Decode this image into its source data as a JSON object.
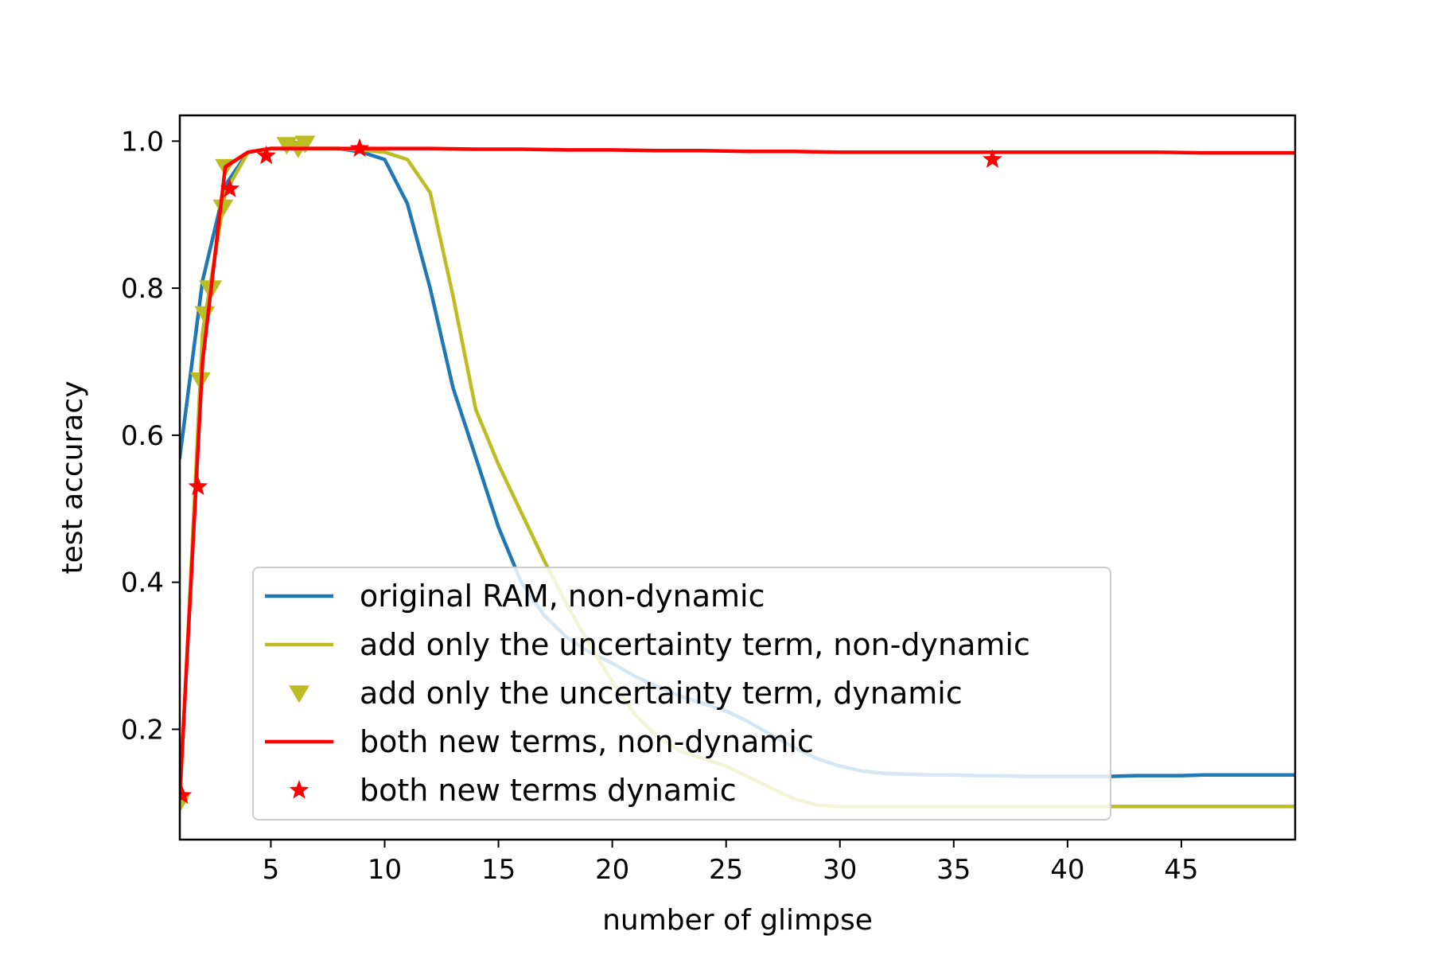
{
  "chart_data": {
    "type": "line",
    "xlabel": "number of glimpse",
    "ylabel": "test accuracy",
    "xlim": [
      1,
      50
    ],
    "ylim": [
      0.05,
      1.035
    ],
    "xticks": [
      5,
      10,
      15,
      20,
      25,
      30,
      35,
      40,
      45
    ],
    "yticks": [
      0.2,
      0.4,
      0.6,
      0.8,
      1.0
    ],
    "xtick_labels": [
      "5",
      "10",
      "15",
      "20",
      "25",
      "30",
      "35",
      "40",
      "45"
    ],
    "ytick_labels": [
      "0.2",
      "0.4",
      "0.6",
      "0.8",
      "1.0"
    ],
    "legend_position": "lower-center",
    "series": [
      {
        "name": "original RAM, non-dynamic",
        "style": "line",
        "color": "#1f77b4",
        "x": [
          1,
          2,
          3,
          4,
          5,
          6,
          7,
          8,
          9,
          10,
          11,
          12,
          13,
          14,
          15,
          16,
          17,
          18,
          19,
          20,
          21,
          22,
          23,
          24,
          25,
          26,
          27,
          28,
          29,
          30,
          31,
          32,
          33,
          34,
          35,
          36,
          37,
          38,
          39,
          40,
          41,
          42,
          43,
          44,
          45,
          46,
          47,
          48,
          49,
          50
        ],
        "y": [
          0.57,
          0.81,
          0.94,
          0.985,
          0.99,
          0.99,
          0.99,
          0.99,
          0.985,
          0.975,
          0.915,
          0.8,
          0.665,
          0.57,
          0.475,
          0.4,
          0.355,
          0.325,
          0.305,
          0.29,
          0.272,
          0.258,
          0.245,
          0.235,
          0.225,
          0.21,
          0.192,
          0.175,
          0.16,
          0.15,
          0.143,
          0.14,
          0.139,
          0.138,
          0.138,
          0.137,
          0.137,
          0.136,
          0.136,
          0.136,
          0.136,
          0.136,
          0.137,
          0.137,
          0.137,
          0.138,
          0.138,
          0.138,
          0.138,
          0.138
        ]
      },
      {
        "name": "add only the uncertainty term, non-dynamic",
        "style": "line",
        "color": "#bcbd22",
        "x": [
          1,
          2,
          3,
          4,
          5,
          6,
          7,
          8,
          9,
          10,
          11,
          12,
          13,
          14,
          15,
          16,
          17,
          18,
          19,
          20,
          21,
          22,
          23,
          24,
          25,
          26,
          27,
          28,
          29,
          30,
          31,
          32,
          33,
          34,
          35,
          36,
          37,
          38,
          39,
          40,
          41,
          42,
          43,
          44,
          45,
          46,
          47,
          48,
          49,
          50
        ],
        "y": [
          0.1,
          0.74,
          0.93,
          0.985,
          0.99,
          0.99,
          0.99,
          0.99,
          0.988,
          0.985,
          0.975,
          0.93,
          0.79,
          0.635,
          0.56,
          0.495,
          0.43,
          0.37,
          0.315,
          0.265,
          0.22,
          0.19,
          0.17,
          0.16,
          0.15,
          0.135,
          0.12,
          0.105,
          0.097,
          0.095,
          0.095,
          0.095,
          0.095,
          0.095,
          0.095,
          0.095,
          0.095,
          0.095,
          0.095,
          0.095,
          0.095,
          0.095,
          0.095,
          0.095,
          0.095,
          0.095,
          0.095,
          0.095,
          0.095,
          0.095
        ]
      },
      {
        "name": "add only the uncertainty term, dynamic",
        "style": "marker-triangle-down",
        "color": "#bcbd22",
        "x": [
          1.0,
          1.9,
          2.1,
          2.3,
          2.4,
          2.9,
          3.0,
          5.7,
          6.2,
          6.5
        ],
        "y": [
          0.1,
          0.675,
          0.765,
          0.8,
          0.8,
          0.91,
          0.965,
          0.995,
          0.99,
          0.997
        ]
      },
      {
        "name": "both new terms, non-dynamic",
        "style": "line",
        "color": "#ff0000",
        "x": [
          1,
          2,
          3,
          4,
          5,
          6,
          7,
          8,
          9,
          10,
          12,
          14,
          16,
          18,
          20,
          22,
          24,
          26,
          28,
          30,
          32,
          34,
          36,
          38,
          40,
          42,
          44,
          46,
          48,
          50
        ],
        "y": [
          0.11,
          0.7,
          0.965,
          0.985,
          0.99,
          0.99,
          0.99,
          0.99,
          0.99,
          0.99,
          0.99,
          0.989,
          0.989,
          0.988,
          0.988,
          0.987,
          0.987,
          0.986,
          0.986,
          0.985,
          0.985,
          0.985,
          0.985,
          0.985,
          0.985,
          0.985,
          0.985,
          0.984,
          0.984,
          0.984
        ]
      },
      {
        "name": "both new terms dynamic",
        "style": "marker-star",
        "color": "#ff0000",
        "x": [
          1.1,
          1.8,
          3.2,
          4.8,
          8.9,
          36.7
        ],
        "y": [
          0.11,
          0.53,
          0.935,
          0.98,
          0.99,
          0.975
        ]
      }
    ]
  }
}
